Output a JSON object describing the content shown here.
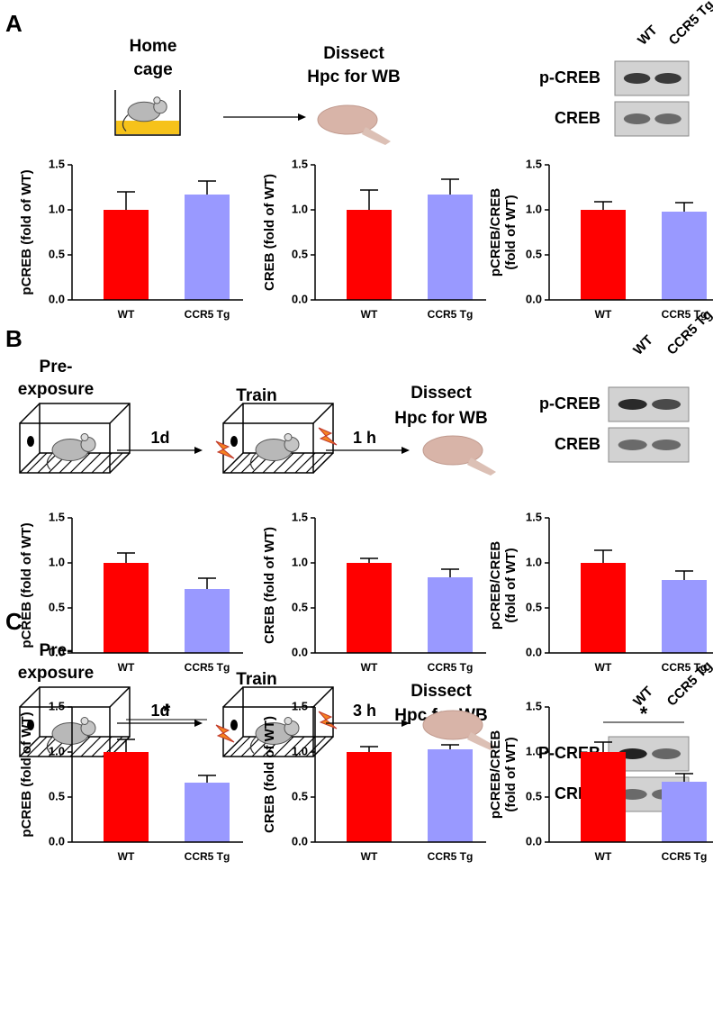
{
  "panels": [
    {
      "letter": "A",
      "home": [
        "Home",
        "cage"
      ],
      "dissect": [
        "Dissect",
        "Hpc for WB"
      ],
      "blot": {
        "lanes": [
          "WT",
          "CCR5 Tg"
        ],
        "rows": [
          "p-CREB",
          "CREB"
        ]
      }
    },
    {
      "letter": "B",
      "preexposure": [
        "Pre-",
        "exposure"
      ],
      "train": "Train",
      "intervals": [
        "1d",
        "1 h"
      ],
      "dissect": [
        "Dissect",
        "Hpc for WB"
      ],
      "blot": {
        "lanes": [
          "WT",
          "CCR5 Tg"
        ],
        "rows": [
          "p-CREB",
          "CREB"
        ]
      }
    },
    {
      "letter": "C",
      "preexposure": [
        "Pre-",
        "exposure"
      ],
      "train": "Train",
      "intervals": [
        "1d",
        "3 h"
      ],
      "dissect": [
        "Dissect",
        "Hpc for WB"
      ],
      "blot": {
        "lanes": [
          "WT",
          "CCR5 Tg"
        ],
        "rows": [
          "P-CREB",
          "CREB"
        ]
      }
    }
  ],
  "chart_data": [
    {
      "type": "bar",
      "ylabel": [
        "pCREB (fold of WT)"
      ],
      "categories": [
        "WT",
        "CCR5 Tg"
      ],
      "values": [
        1.0,
        1.17
      ],
      "errors": [
        0.2,
        0.15
      ],
      "colors": [
        "#ff0000",
        "#9999ff"
      ],
      "ylim": [
        0,
        1.5
      ],
      "yticks": [
        {
          "value": 0,
          "label": "0.0"
        },
        0.5,
        {
          "value": 1,
          "label": "1.0"
        },
        1.5
      ]
    },
    {
      "type": "bar",
      "ylabel": [
        "CREB (fold of WT)"
      ],
      "categories": [
        "WT",
        "CCR5 Tg"
      ],
      "values": [
        1.0,
        1.17
      ],
      "errors": [
        0.22,
        0.17
      ],
      "colors": [
        "#ff0000",
        "#9999ff"
      ],
      "ylim": [
        0,
        1.5
      ],
      "yticks": [
        {
          "value": 0,
          "label": "0.0"
        },
        0.5,
        {
          "value": 1,
          "label": "1.0"
        },
        1.5
      ]
    },
    {
      "type": "bar",
      "ylabel": [
        "pCREB/CREB",
        "(fold of WT)"
      ],
      "categories": [
        "WT",
        "CCR5 Tg"
      ],
      "values": [
        1.0,
        0.98
      ],
      "errors": [
        0.09,
        0.1
      ],
      "colors": [
        "#ff0000",
        "#9999ff"
      ],
      "ylim": [
        0,
        1.5
      ],
      "yticks": [
        {
          "value": 0,
          "label": "0.0"
        },
        0.5,
        {
          "value": 1,
          "label": "1.0"
        },
        1.5
      ]
    },
    {
      "type": "bar",
      "ylabel": [
        "pCREB (fold of WT)"
      ],
      "categories": [
        "WT",
        "CCR5 Tg"
      ],
      "values": [
        1.0,
        0.71
      ],
      "errors": [
        0.11,
        0.12
      ],
      "colors": [
        "#ff0000",
        "#9999ff"
      ],
      "ylim": [
        0,
        1.5
      ],
      "yticks": [
        {
          "value": 0,
          "label": "0.0"
        },
        0.5,
        {
          "value": 1,
          "label": "1.0"
        },
        1.5
      ]
    },
    {
      "type": "bar",
      "ylabel": [
        "CREB (fold of WT)"
      ],
      "categories": [
        "WT",
        "CCR5 Tg"
      ],
      "values": [
        1.0,
        0.84
      ],
      "errors": [
        0.05,
        0.09
      ],
      "colors": [
        "#ff0000",
        "#9999ff"
      ],
      "ylim": [
        0,
        1.5
      ],
      "yticks": [
        {
          "value": 0,
          "label": "0.0"
        },
        0.5,
        {
          "value": 1,
          "label": "1.0"
        },
        1.5
      ]
    },
    {
      "type": "bar",
      "ylabel": [
        "pCREB/CREB",
        "(fold of WT)"
      ],
      "categories": [
        "WT",
        "CCR5 Tg"
      ],
      "values": [
        1.0,
        0.81
      ],
      "errors": [
        0.14,
        0.1
      ],
      "colors": [
        "#ff0000",
        "#9999ff"
      ],
      "ylim": [
        0,
        1.5
      ],
      "yticks": [
        {
          "value": 0,
          "label": "0.0"
        },
        0.5,
        {
          "value": 1,
          "label": "1.0"
        },
        1.5
      ]
    },
    {
      "type": "bar",
      "ylabel": [
        "pCREB (fold of WT)"
      ],
      "categories": [
        "WT",
        "CCR5 Tg"
      ],
      "values": [
        1.0,
        0.66
      ],
      "errors": [
        0.14,
        0.08
      ],
      "colors": [
        "#ff0000",
        "#9999ff"
      ],
      "ylim": [
        0,
        1.5
      ],
      "yticks": [
        {
          "value": 0,
          "label": "0.0"
        },
        0.5,
        {
          "value": 1,
          "label": "1.0"
        },
        1.5
      ],
      "annotation": "*"
    },
    {
      "type": "bar",
      "ylabel": [
        "CREB (fold of WT)"
      ],
      "categories": [
        "WT",
        "CCR5 Tg"
      ],
      "values": [
        1.0,
        1.03
      ],
      "errors": [
        0.06,
        0.05
      ],
      "colors": [
        "#ff0000",
        "#9999ff"
      ],
      "ylim": [
        0,
        1.5
      ],
      "yticks": [
        {
          "value": 0,
          "label": "0.0"
        },
        0.5,
        {
          "value": 1,
          "label": "1.0"
        },
        1.5
      ]
    },
    {
      "type": "bar",
      "ylabel": [
        "pCREB/CREB",
        "(fold of WT)"
      ],
      "categories": [
        "WT",
        "CCR5 Tg"
      ],
      "values": [
        1.0,
        0.67
      ],
      "errors": [
        0.11,
        0.09
      ],
      "colors": [
        "#ff0000",
        "#9999ff"
      ],
      "ylim": [
        0,
        1.5
      ],
      "yticks": [
        {
          "value": 0,
          "label": "0.0"
        },
        0.5,
        {
          "value": 1,
          "label": "1.0"
        },
        1.5
      ],
      "annotation": "*"
    }
  ]
}
